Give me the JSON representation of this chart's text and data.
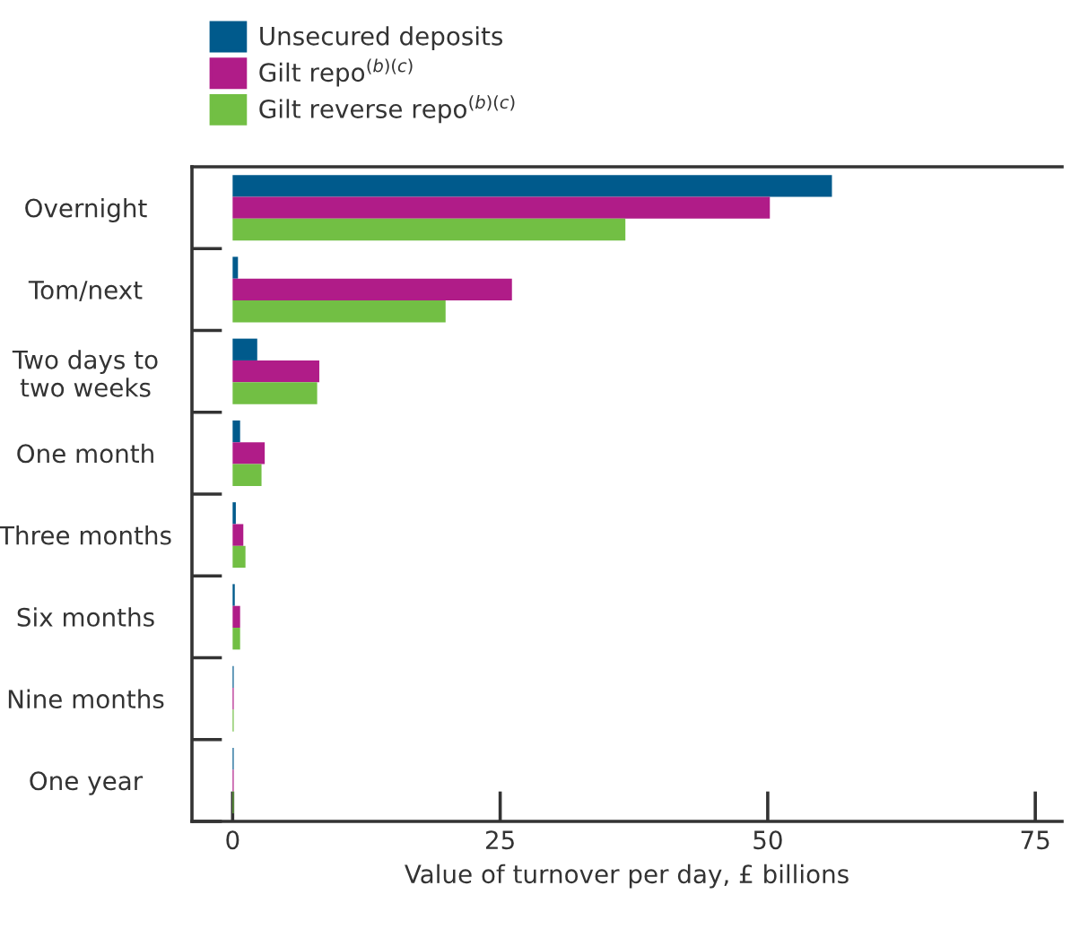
{
  "chart_data": {
    "type": "bar",
    "orientation": "horizontal",
    "xlabel": "Value of turnover per day, £ billions",
    "categories": [
      "Overnight",
      "Tom/next",
      "Two days to\ntwo weeks",
      "One month",
      "Three months",
      "Six months",
      "Nine months",
      "One year"
    ],
    "series": [
      {
        "name": "Unsecured deposits",
        "color": "#005a8c",
        "values": [
          56.0,
          0.5,
          2.3,
          0.7,
          0.3,
          0.2,
          0.1,
          0.1
        ]
      },
      {
        "name": "Gilt repo$^{(b)(c)}$",
        "color": "#b01c88",
        "values": [
          50.2,
          26.1,
          8.1,
          3.0,
          1.0,
          0.7,
          0.1,
          0.1
        ]
      },
      {
        "name": "Gilt reverse repo$^{(b)(c)}$",
        "color": "#72bf44",
        "values": [
          36.7,
          19.9,
          7.9,
          2.7,
          1.2,
          0.7,
          0.1,
          0.1
        ]
      }
    ],
    "xlim": [
      -3.8,
      77.5
    ],
    "xticks": [
      0,
      25,
      50,
      75
    ],
    "grid": false,
    "legend": "top left"
  }
}
